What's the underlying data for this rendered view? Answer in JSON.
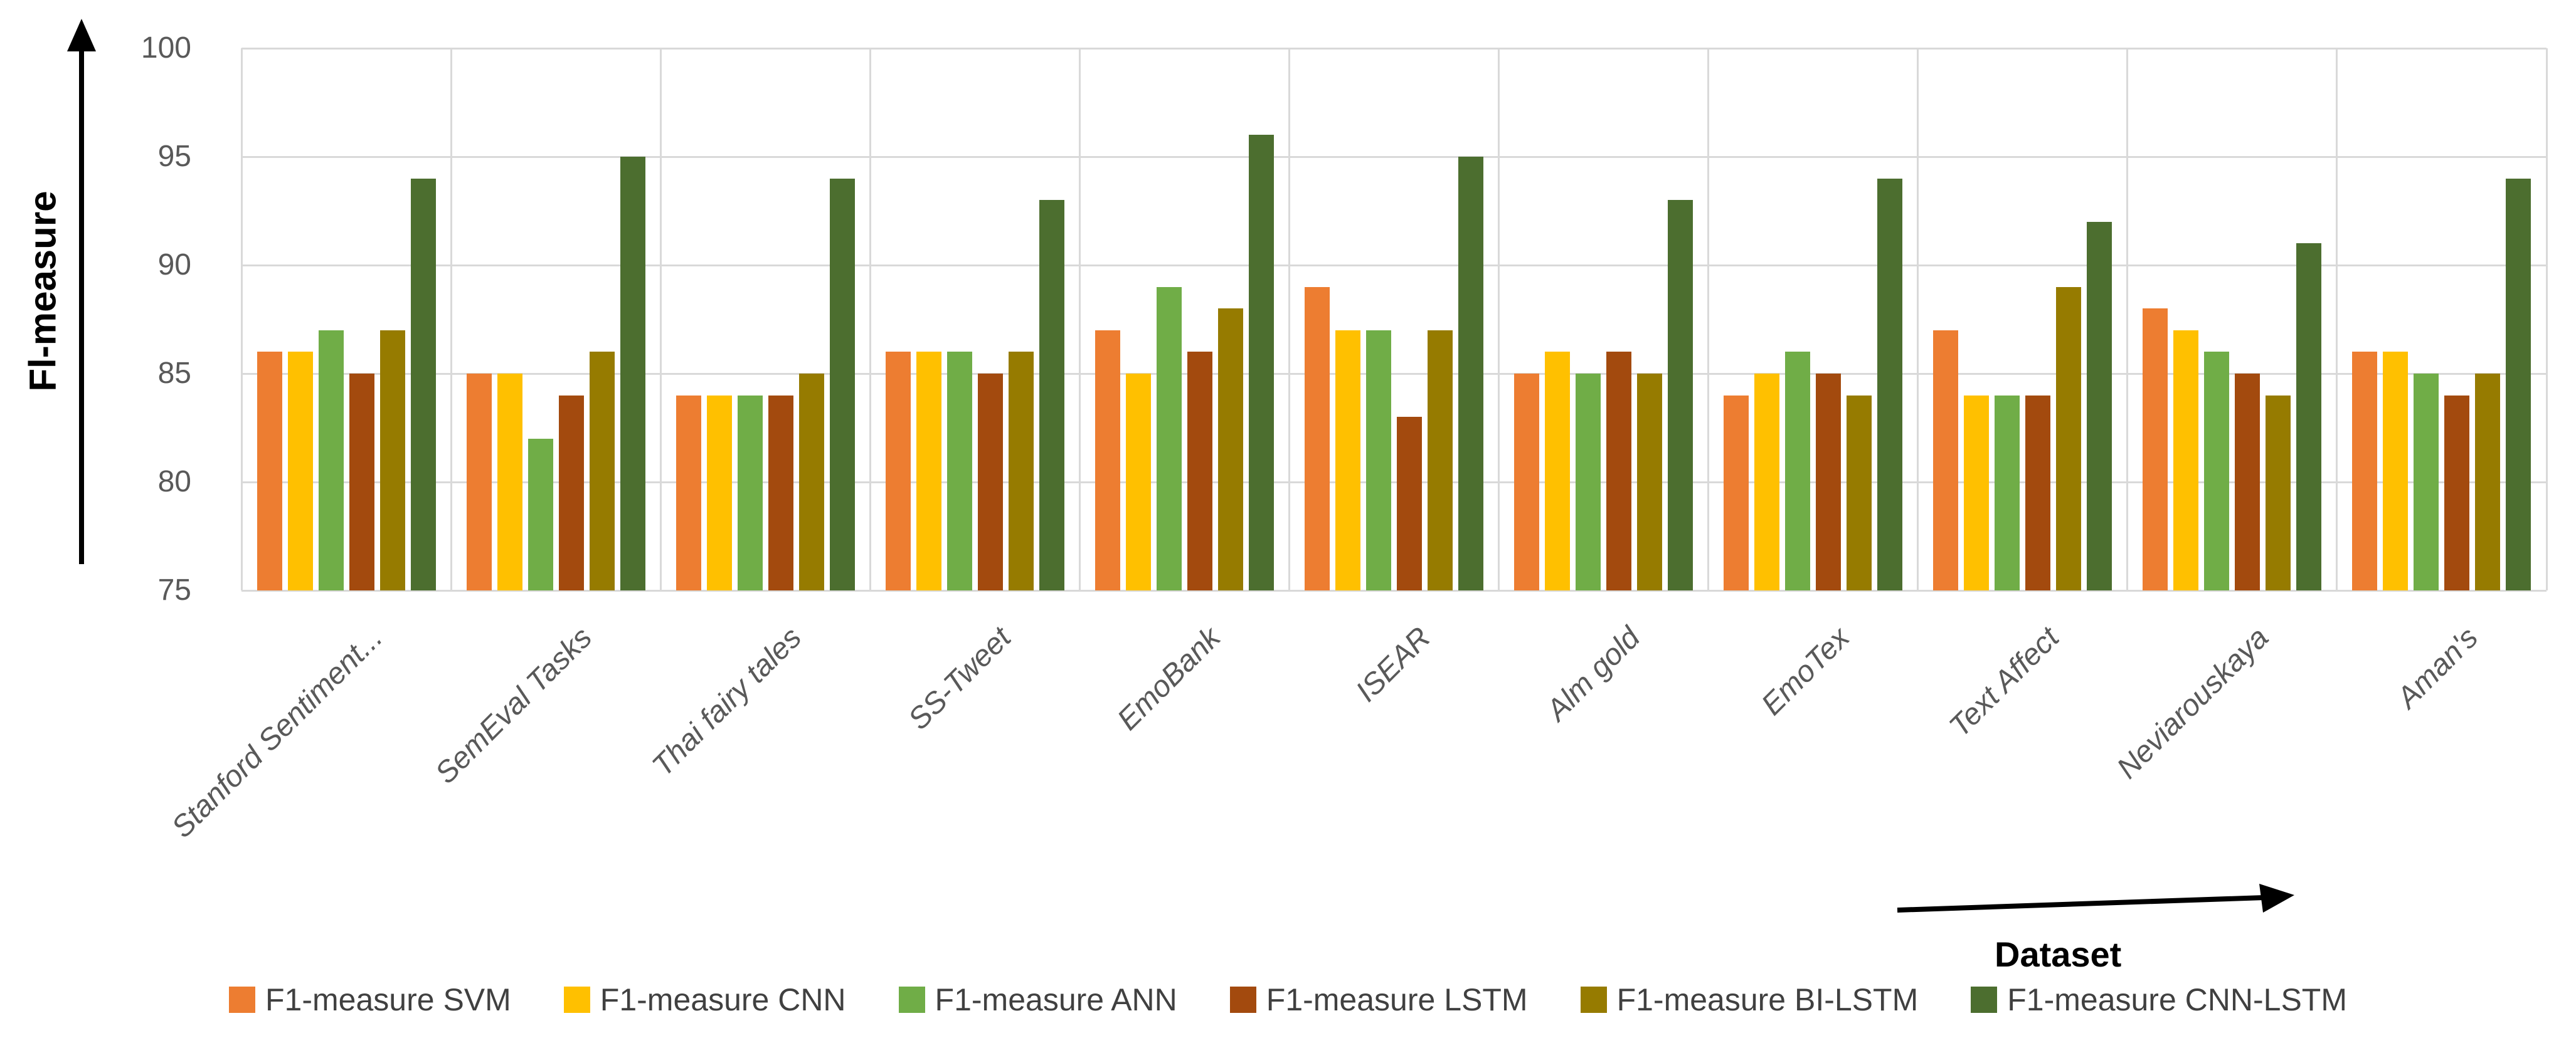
{
  "chart_data": {
    "type": "bar",
    "title": "",
    "ylabel": "Fl-measure",
    "xlabel": "Dataset",
    "ylim": [
      75,
      100
    ],
    "yticks": [
      75,
      80,
      85,
      90,
      95,
      100
    ],
    "grid": true,
    "legend_position": "bottom",
    "categories": [
      "Stanford Sentiment...",
      "SemEval Tasks",
      "Thai fairy tales",
      "SS-Tweet",
      "EmoBank",
      "ISEAR",
      "Alm gold",
      "EmoTex",
      "Text Affect",
      "Neviarouskaya",
      "Aman's"
    ],
    "series": [
      {
        "name": "F1-measure SVM",
        "color": "#ED7D31",
        "values": [
          86,
          85,
          84,
          86,
          87,
          89,
          85,
          84,
          87,
          88,
          86
        ]
      },
      {
        "name": "F1-measure CNN",
        "color": "#FFC000",
        "values": [
          86,
          85,
          84,
          86,
          85,
          87,
          86,
          85,
          84,
          87,
          86
        ]
      },
      {
        "name": "F1-measure ANN",
        "color": "#70AD47",
        "values": [
          87,
          82,
          84,
          86,
          89,
          87,
          85,
          86,
          84,
          86,
          85
        ]
      },
      {
        "name": "F1-measure LSTM",
        "color": "#A34A0E",
        "values": [
          85,
          84,
          84,
          85,
          86,
          83,
          86,
          85,
          84,
          85,
          84
        ]
      },
      {
        "name": "F1-measure BI-LSTM",
        "color": "#967B00",
        "values": [
          87,
          86,
          85,
          86,
          88,
          87,
          85,
          84,
          89,
          84,
          85
        ]
      },
      {
        "name": "F1-measure CNN-LSTM",
        "color": "#4C6E2F",
        "values": [
          94,
          95,
          94,
          93,
          96,
          95,
          93,
          94,
          92,
          91,
          94
        ]
      }
    ]
  }
}
